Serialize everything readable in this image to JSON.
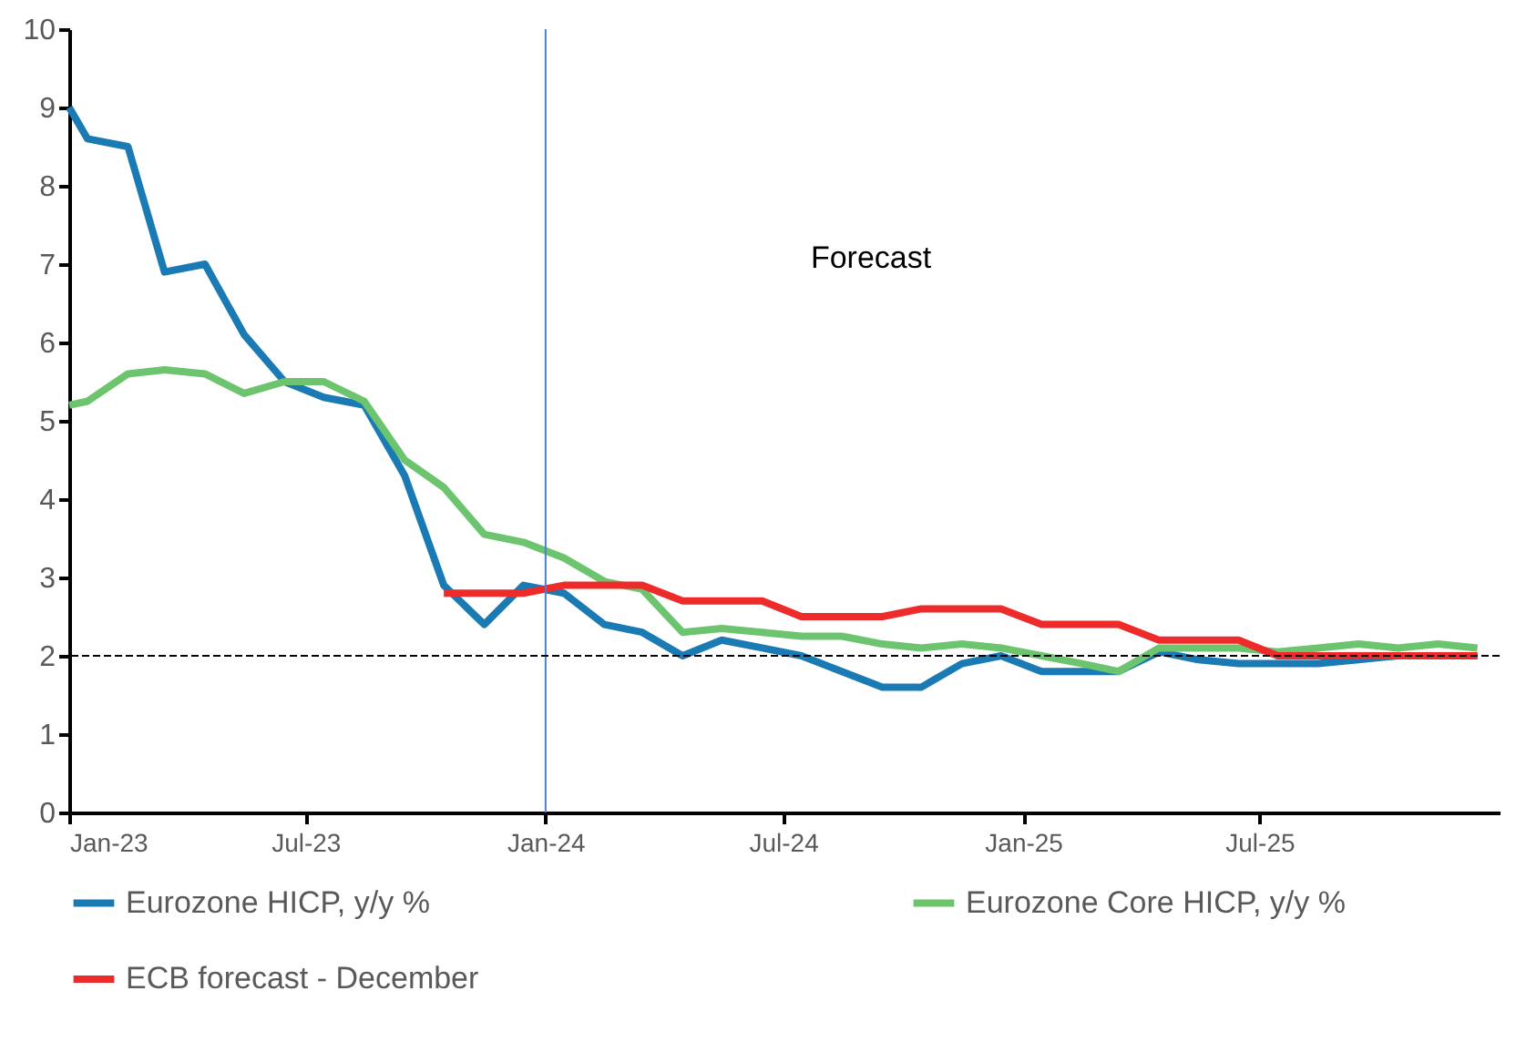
{
  "chart_data": {
    "type": "line",
    "xlim": [
      "2023-01",
      "2026-01"
    ],
    "ylim": [
      0,
      10
    ],
    "yticks": [
      0,
      1,
      2,
      3,
      4,
      5,
      6,
      7,
      8,
      9,
      10
    ],
    "xticks": [
      {
        "value": "2023-01",
        "label": "Jan-23"
      },
      {
        "value": "2023-07",
        "label": "Jul-23"
      },
      {
        "value": "2024-01",
        "label": "Jan-24"
      },
      {
        "value": "2024-07",
        "label": "Jul-24"
      },
      {
        "value": "2025-01",
        "label": "Jan-25"
      },
      {
        "value": "2025-07",
        "label": "Jul-25"
      }
    ],
    "x": [
      "2023-01-01",
      "2023-01-15",
      "2023-02-15",
      "2023-03-15",
      "2023-04-15",
      "2023-05-15",
      "2023-06-15",
      "2023-07-15",
      "2023-08-15",
      "2023-09-15",
      "2023-10-15",
      "2023-11-15",
      "2023-12-15",
      "2024-01-15",
      "2024-02-15",
      "2024-03-15",
      "2024-04-15",
      "2024-05-15",
      "2024-06-15",
      "2024-07-15",
      "2024-08-15",
      "2024-09-15",
      "2024-10-15",
      "2024-11-15",
      "2024-12-15",
      "2025-01-15",
      "2025-02-15",
      "2025-03-15",
      "2025-04-15",
      "2025-05-15",
      "2025-06-15",
      "2025-07-15",
      "2025-08-15",
      "2025-09-15",
      "2025-10-15",
      "2025-11-15",
      "2025-12-15"
    ],
    "series": [
      {
        "name": "Eurozone HICP, y/y %",
        "color": "#1a7ab3",
        "values": [
          9.0,
          8.6,
          8.5,
          6.9,
          7.0,
          6.1,
          5.5,
          5.3,
          5.2,
          4.3,
          2.9,
          2.4,
          2.9,
          2.8,
          2.4,
          2.3,
          2.0,
          2.2,
          2.1,
          2.0,
          1.8,
          1.6,
          1.6,
          1.9,
          2.0,
          1.8,
          1.8,
          1.8,
          2.05,
          1.95,
          1.9,
          1.9,
          1.9,
          1.95,
          2.0,
          2.0,
          2.0
        ]
      },
      {
        "name": "Eurozone Core HICP, y/y %",
        "color": "#6cc56e",
        "values": [
          5.2,
          5.25,
          5.6,
          5.65,
          5.6,
          5.35,
          5.5,
          5.5,
          5.25,
          4.5,
          4.15,
          3.55,
          3.45,
          3.25,
          2.95,
          2.85,
          2.3,
          2.35,
          2.3,
          2.25,
          2.25,
          2.15,
          2.1,
          2.15,
          2.1,
          2.0,
          1.9,
          1.8,
          2.1,
          2.1,
          2.1,
          2.05,
          2.1,
          2.15,
          2.1,
          2.15,
          2.1
        ]
      },
      {
        "name": "ECB forecast - December",
        "color": "#ee2b2b",
        "values": [
          null,
          null,
          null,
          null,
          null,
          null,
          null,
          null,
          null,
          null,
          2.8,
          2.8,
          2.8,
          2.9,
          2.9,
          2.9,
          2.7,
          2.7,
          2.7,
          2.5,
          2.5,
          2.5,
          2.6,
          2.6,
          2.6,
          2.4,
          2.4,
          2.4,
          2.2,
          2.2,
          2.2,
          2.0,
          2.0,
          2.0,
          2.0,
          2.0,
          2.0
        ]
      }
    ],
    "ref_lines": [
      {
        "axis": "x",
        "value": "2024-01",
        "color": "#4a7fd4"
      },
      {
        "axis": "y",
        "value": 2,
        "color": "#000000",
        "line_style": "dashed"
      }
    ],
    "annotations": [
      "Forecast"
    ],
    "legend": "bottom",
    "grid": false,
    "line_style": "solid",
    "marker": "none"
  }
}
